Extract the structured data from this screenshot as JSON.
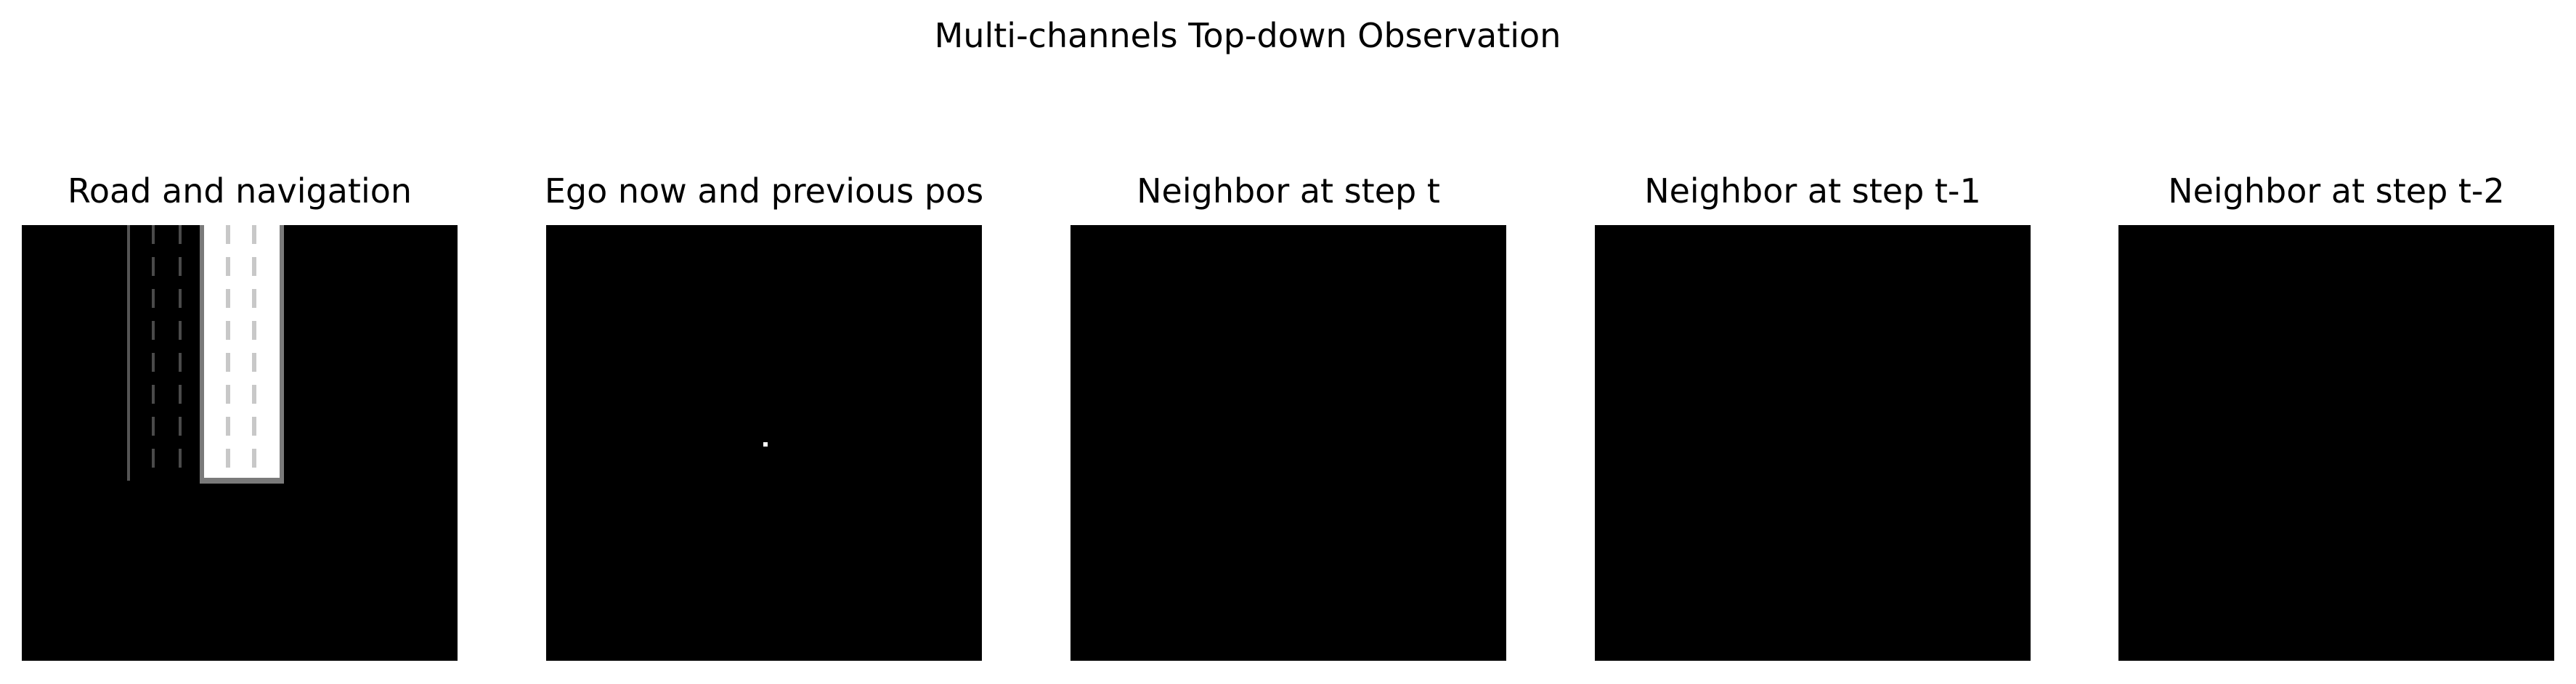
{
  "figure": {
    "title": "Multi-channels Top-down Observation"
  },
  "panels": [
    {
      "title": "Road and navigation",
      "content": "road-map"
    },
    {
      "title": "Ego now and previous pos",
      "content": "ego-marker"
    },
    {
      "title": "Neighbor at step t",
      "content": "empty"
    },
    {
      "title": "Neighbor at step t-1",
      "content": "empty"
    },
    {
      "title": "Neighbor at step t-2",
      "content": "empty"
    }
  ],
  "colors": {
    "background": "#000000",
    "navigation_band": "#ffffff",
    "lane_dash_bright": "#c8c8c8",
    "lane_dash_dim": "#4a4a4a",
    "road_edge": "#555555",
    "ego_marker": "#ffffff"
  }
}
